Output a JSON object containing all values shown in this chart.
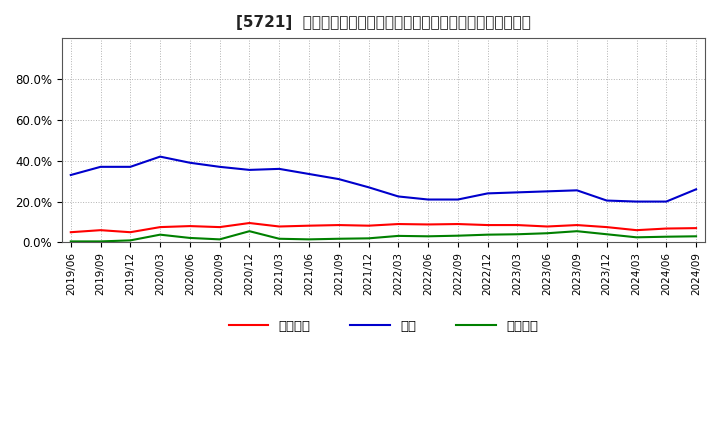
{
  "title": "[5721]  売上債権、在庫、買入債務の総資産に対する比率の推移",
  "x_labels": [
    "2019/06",
    "2019/09",
    "2019/12",
    "2020/03",
    "2020/06",
    "2020/09",
    "2020/12",
    "2021/03",
    "2021/06",
    "2021/09",
    "2021/12",
    "2022/03",
    "2022/06",
    "2022/09",
    "2022/12",
    "2023/03",
    "2023/06",
    "2023/09",
    "2023/12",
    "2024/03",
    "2024/06",
    "2024/09"
  ],
  "receivables": [
    0.05,
    0.06,
    0.05,
    0.075,
    0.08,
    0.075,
    0.095,
    0.078,
    0.082,
    0.085,
    0.082,
    0.09,
    0.088,
    0.09,
    0.085,
    0.085,
    0.078,
    0.085,
    0.075,
    0.06,
    0.068,
    0.07
  ],
  "inventory": [
    0.33,
    0.37,
    0.37,
    0.42,
    0.39,
    0.37,
    0.355,
    0.36,
    0.335,
    0.31,
    0.27,
    0.225,
    0.21,
    0.21,
    0.24,
    0.245,
    0.25,
    0.255,
    0.205,
    0.2,
    0.2,
    0.26
  ],
  "payables": [
    0.005,
    0.005,
    0.01,
    0.038,
    0.022,
    0.015,
    0.055,
    0.018,
    0.015,
    0.018,
    0.02,
    0.032,
    0.03,
    0.033,
    0.038,
    0.04,
    0.045,
    0.055,
    0.04,
    0.025,
    0.028,
    0.03
  ],
  "receivables_color": "#ff0000",
  "inventory_color": "#0000cc",
  "payables_color": "#008000",
  "legend_labels": [
    "売上債権",
    "在庫",
    "買入債務"
  ],
  "ylim": [
    0.0,
    1.0
  ],
  "yticks": [
    0.0,
    0.2,
    0.4,
    0.6,
    0.8
  ],
  "ytick_labels": [
    "0.0%",
    "20.0%",
    "40.0%",
    "60.0%",
    "80.0%"
  ],
  "background_color": "#ffffff",
  "grid_color": "#aaaaaa",
  "title_fontsize": 11,
  "line_width": 1.5
}
